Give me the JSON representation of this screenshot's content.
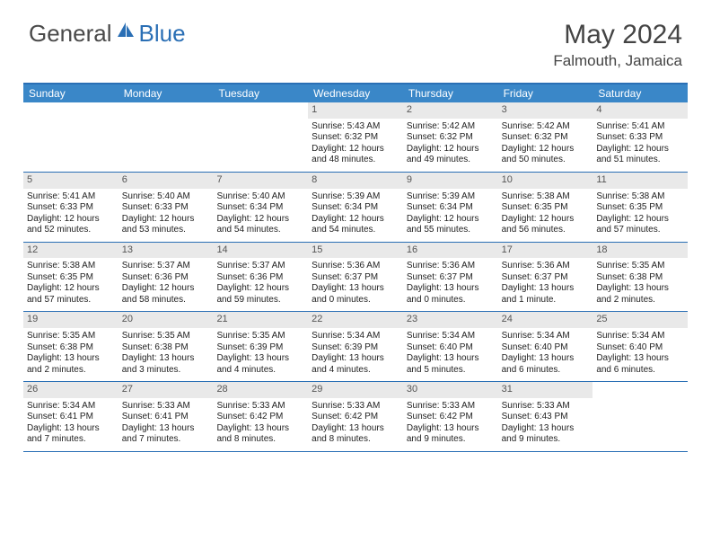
{
  "brand": {
    "part1": "General",
    "part2": "Blue"
  },
  "title": "May 2024",
  "location": "Falmouth, Jamaica",
  "colors": {
    "header_bg": "#3a87c8",
    "border": "#2a6fb5",
    "daybar": "#e9e9e9",
    "text": "#222222",
    "brand_gray": "#4a4a4a",
    "brand_blue": "#2a6fb5"
  },
  "day_headers": [
    "Sunday",
    "Monday",
    "Tuesday",
    "Wednesday",
    "Thursday",
    "Friday",
    "Saturday"
  ],
  "weeks": [
    [
      {
        "empty": true
      },
      {
        "empty": true
      },
      {
        "empty": true
      },
      {
        "n": "1",
        "sunrise": "5:43 AM",
        "sunset": "6:32 PM",
        "daylight": "12 hours and 48 minutes."
      },
      {
        "n": "2",
        "sunrise": "5:42 AM",
        "sunset": "6:32 PM",
        "daylight": "12 hours and 49 minutes."
      },
      {
        "n": "3",
        "sunrise": "5:42 AM",
        "sunset": "6:32 PM",
        "daylight": "12 hours and 50 minutes."
      },
      {
        "n": "4",
        "sunrise": "5:41 AM",
        "sunset": "6:33 PM",
        "daylight": "12 hours and 51 minutes."
      }
    ],
    [
      {
        "n": "5",
        "sunrise": "5:41 AM",
        "sunset": "6:33 PM",
        "daylight": "12 hours and 52 minutes."
      },
      {
        "n": "6",
        "sunrise": "5:40 AM",
        "sunset": "6:33 PM",
        "daylight": "12 hours and 53 minutes."
      },
      {
        "n": "7",
        "sunrise": "5:40 AM",
        "sunset": "6:34 PM",
        "daylight": "12 hours and 54 minutes."
      },
      {
        "n": "8",
        "sunrise": "5:39 AM",
        "sunset": "6:34 PM",
        "daylight": "12 hours and 54 minutes."
      },
      {
        "n": "9",
        "sunrise": "5:39 AM",
        "sunset": "6:34 PM",
        "daylight": "12 hours and 55 minutes."
      },
      {
        "n": "10",
        "sunrise": "5:38 AM",
        "sunset": "6:35 PM",
        "daylight": "12 hours and 56 minutes."
      },
      {
        "n": "11",
        "sunrise": "5:38 AM",
        "sunset": "6:35 PM",
        "daylight": "12 hours and 57 minutes."
      }
    ],
    [
      {
        "n": "12",
        "sunrise": "5:38 AM",
        "sunset": "6:35 PM",
        "daylight": "12 hours and 57 minutes."
      },
      {
        "n": "13",
        "sunrise": "5:37 AM",
        "sunset": "6:36 PM",
        "daylight": "12 hours and 58 minutes."
      },
      {
        "n": "14",
        "sunrise": "5:37 AM",
        "sunset": "6:36 PM",
        "daylight": "12 hours and 59 minutes."
      },
      {
        "n": "15",
        "sunrise": "5:36 AM",
        "sunset": "6:37 PM",
        "daylight": "13 hours and 0 minutes."
      },
      {
        "n": "16",
        "sunrise": "5:36 AM",
        "sunset": "6:37 PM",
        "daylight": "13 hours and 0 minutes."
      },
      {
        "n": "17",
        "sunrise": "5:36 AM",
        "sunset": "6:37 PM",
        "daylight": "13 hours and 1 minute."
      },
      {
        "n": "18",
        "sunrise": "5:35 AM",
        "sunset": "6:38 PM",
        "daylight": "13 hours and 2 minutes."
      }
    ],
    [
      {
        "n": "19",
        "sunrise": "5:35 AM",
        "sunset": "6:38 PM",
        "daylight": "13 hours and 2 minutes."
      },
      {
        "n": "20",
        "sunrise": "5:35 AM",
        "sunset": "6:38 PM",
        "daylight": "13 hours and 3 minutes."
      },
      {
        "n": "21",
        "sunrise": "5:35 AM",
        "sunset": "6:39 PM",
        "daylight": "13 hours and 4 minutes."
      },
      {
        "n": "22",
        "sunrise": "5:34 AM",
        "sunset": "6:39 PM",
        "daylight": "13 hours and 4 minutes."
      },
      {
        "n": "23",
        "sunrise": "5:34 AM",
        "sunset": "6:40 PM",
        "daylight": "13 hours and 5 minutes."
      },
      {
        "n": "24",
        "sunrise": "5:34 AM",
        "sunset": "6:40 PM",
        "daylight": "13 hours and 6 minutes."
      },
      {
        "n": "25",
        "sunrise": "5:34 AM",
        "sunset": "6:40 PM",
        "daylight": "13 hours and 6 minutes."
      }
    ],
    [
      {
        "n": "26",
        "sunrise": "5:34 AM",
        "sunset": "6:41 PM",
        "daylight": "13 hours and 7 minutes."
      },
      {
        "n": "27",
        "sunrise": "5:33 AM",
        "sunset": "6:41 PM",
        "daylight": "13 hours and 7 minutes."
      },
      {
        "n": "28",
        "sunrise": "5:33 AM",
        "sunset": "6:42 PM",
        "daylight": "13 hours and 8 minutes."
      },
      {
        "n": "29",
        "sunrise": "5:33 AM",
        "sunset": "6:42 PM",
        "daylight": "13 hours and 8 minutes."
      },
      {
        "n": "30",
        "sunrise": "5:33 AM",
        "sunset": "6:42 PM",
        "daylight": "13 hours and 9 minutes."
      },
      {
        "n": "31",
        "sunrise": "5:33 AM",
        "sunset": "6:43 PM",
        "daylight": "13 hours and 9 minutes."
      },
      {
        "empty": true
      }
    ]
  ],
  "labels": {
    "sunrise": "Sunrise: ",
    "sunset": "Sunset: ",
    "daylight": "Daylight: "
  }
}
